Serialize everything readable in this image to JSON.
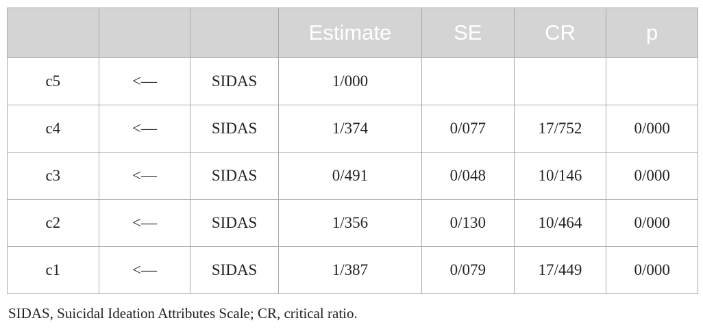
{
  "table": {
    "headers": [
      "",
      "",
      "",
      "Estimate",
      "SE",
      "CR",
      "p"
    ],
    "rows": [
      [
        "c5",
        "<—",
        "SIDAS",
        "1/000",
        "",
        "",
        ""
      ],
      [
        "c4",
        "<—",
        "SIDAS",
        "1/374",
        "0/077",
        "17/752",
        "0/000"
      ],
      [
        "c3",
        "<—",
        "SIDAS",
        "0/491",
        "0/048",
        "10/146",
        "0/000"
      ],
      [
        "c2",
        "<—",
        "SIDAS",
        "1/356",
        "0/130",
        "10/464",
        "0/000"
      ],
      [
        "c1",
        "<—",
        "SIDAS",
        "1/387",
        "0/079",
        "17/449",
        "0/000"
      ]
    ]
  },
  "footnote": "SIDAS, Suicidal Ideation Attributes Scale; CR, critical ratio.",
  "colors": {
    "header_bg": "#d4d4d4",
    "header_text": "#ffffff",
    "border": "#a9a9a9",
    "body_text": "#222222"
  }
}
